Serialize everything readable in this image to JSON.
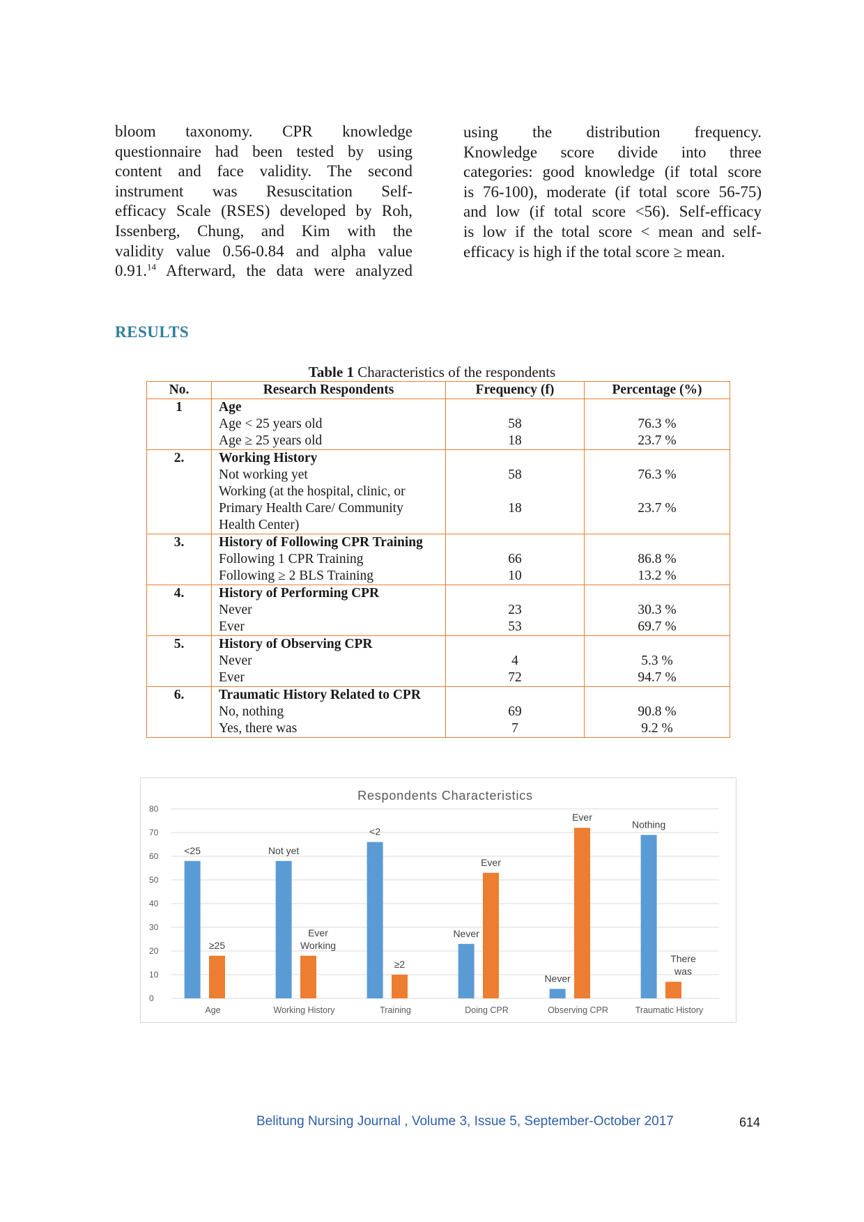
{
  "left_column": {
    "lines": [
      "bloom taxonomy. CPR knowledge",
      "questionnaire had been tested by using",
      "content and face validity. The second",
      "instrument was Resuscitation Self-",
      "efficacy Scale (RSES) developed by Roh,",
      "Issenberg, Chung, and Kim with the",
      "validity value 0.56-0.84 and alpha value"
    ],
    "last_line_pre": "0.91.",
    "last_line_sup": "14",
    "last_line_post": " Afterward, the data were analyzed"
  },
  "right_column": {
    "lines": [
      "using the distribution frequency.",
      "Knowledge score divide into three",
      "categories: good knowledge (if total score",
      "is 76-100), moderate (if total score 56-75)",
      "and low (if total score <56). Self-efficacy",
      "is low if the total score < mean and self-"
    ],
    "last_line": "efficacy is high if the total score ≥ mean."
  },
  "section_heading": "RESULTS",
  "table_caption": {
    "label": "Table 1",
    "text": " Characteristics of the respondents"
  },
  "table": {
    "headers": [
      "No.",
      "Research Respondents",
      "Frequency (f)",
      "Percentage (%)"
    ],
    "groups": [
      {
        "no": "1",
        "category": "Age",
        "rows": [
          {
            "label": "Age < 25 years old",
            "freq": "58",
            "pct": "76.3 %"
          },
          {
            "label": "Age ≥ 25 years old",
            "freq": "18",
            "pct": "23.7 %"
          }
        ]
      },
      {
        "no": "2.",
        "category": "Working History",
        "rows": [
          {
            "label": "Not working yet",
            "freq": "58",
            "pct": "76.3 %"
          },
          {
            "label": "Working (at the hospital, clinic, or Primary Health Care/ Community Health Center)",
            "freq": "18",
            "pct": "23.7 %"
          }
        ]
      },
      {
        "no": "3.",
        "category": "History of Following CPR Training",
        "rows": [
          {
            "label": "Following 1 CPR Training",
            "freq": "66",
            "pct": "86.8 %"
          },
          {
            "label": "Following ≥ 2 BLS Training",
            "freq": "10",
            "pct": "13.2 %"
          }
        ]
      },
      {
        "no": "4.",
        "category": "History of Performing CPR",
        "rows": [
          {
            "label": "Never",
            "freq": "23",
            "pct": "30.3 %"
          },
          {
            "label": "Ever",
            "freq": "53",
            "pct": "69.7 %"
          }
        ]
      },
      {
        "no": "5.",
        "category": "History of Observing CPR",
        "rows": [
          {
            "label": "Never",
            "freq": "4",
            "pct": "5.3 %"
          },
          {
            "label": "Ever",
            "freq": "72",
            "pct": "94.7 %"
          }
        ]
      },
      {
        "no": "6.",
        "category": "Traumatic History Related to CPR",
        "rows": [
          {
            "label": "No, nothing",
            "freq": "69",
            "pct": "90.8 %"
          },
          {
            "label": "Yes, there was",
            "freq": "7",
            "pct": "9.2 %"
          }
        ]
      }
    ]
  },
  "chart_data": {
    "type": "bar",
    "title": "Respondents Characteristics",
    "categories": [
      "Age",
      "Working History",
      "Training",
      "Doing CPR",
      "Observing CPR",
      "Traumatic History"
    ],
    "series": [
      {
        "values": [
          58,
          58,
          66,
          23,
          4,
          69
        ],
        "color": "#5b9bd5",
        "data_labels": [
          "<25",
          "Not yet",
          "<2",
          "Never",
          "Never",
          "Nothing"
        ]
      },
      {
        "values": [
          18,
          18,
          10,
          53,
          72,
          7
        ],
        "color": "#ed7d31",
        "data_labels": [
          "≥25",
          "Ever Working",
          "≥2",
          "Ever",
          "Ever",
          "There was"
        ]
      }
    ],
    "ylim": [
      0,
      80
    ],
    "yticks": [
      0,
      10,
      20,
      30,
      40,
      50,
      60,
      70,
      80
    ],
    "grid": true,
    "legend": false
  },
  "footer": {
    "journal": "Belitung Nursing Journal , Volume 3, Issue 5, September-October 2017",
    "page_number": "614"
  }
}
